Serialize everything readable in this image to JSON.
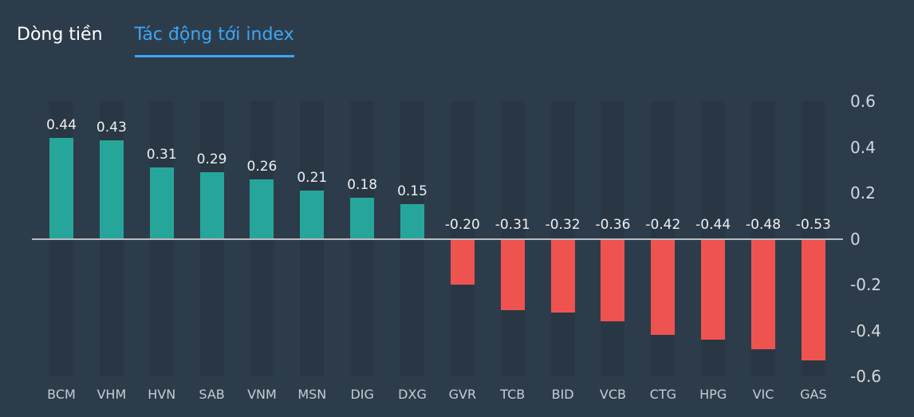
{
  "tabs": [
    {
      "label": "Dòng tiền",
      "active": false
    },
    {
      "label": "Tác động tới index",
      "active": true
    }
  ],
  "colors": {
    "background": "#2d3c4b",
    "stripe": "#293744",
    "positive": "#26a69a",
    "negative": "#ef5350",
    "accent": "#3ea6f2",
    "zero_line": "#b9bec3"
  },
  "chart_data": {
    "type": "bar",
    "title": "Tác động tới index",
    "categories": [
      "BCM",
      "VHM",
      "HVN",
      "SAB",
      "VNM",
      "MSN",
      "DIG",
      "DXG",
      "GVR",
      "TCB",
      "BID",
      "VCB",
      "CTG",
      "HPG",
      "VIC",
      "GAS"
    ],
    "values": [
      0.44,
      0.43,
      0.31,
      0.29,
      0.26,
      0.21,
      0.18,
      0.15,
      -0.2,
      -0.31,
      -0.32,
      -0.36,
      -0.42,
      -0.44,
      -0.48,
      -0.53
    ],
    "value_labels": [
      "0.44",
      "0.43",
      "0.31",
      "0.29",
      "0.26",
      "0.21",
      "0.18",
      "0.15",
      "-0.20",
      "-0.31",
      "-0.32",
      "-0.36",
      "-0.42",
      "-0.44",
      "-0.48",
      "-0.53"
    ],
    "xlabel": "",
    "ylabel": "",
    "ylim": [
      -0.6,
      0.6
    ],
    "yticks": [
      0.6,
      0.4,
      0.2,
      0,
      -0.2,
      -0.4,
      -0.6
    ],
    "ytick_labels": [
      "0.6",
      "0.4",
      "0.2",
      "0",
      "-0.2",
      "-0.4",
      "-0.6"
    ],
    "grid": false,
    "legend": "none",
    "column_background": true
  }
}
